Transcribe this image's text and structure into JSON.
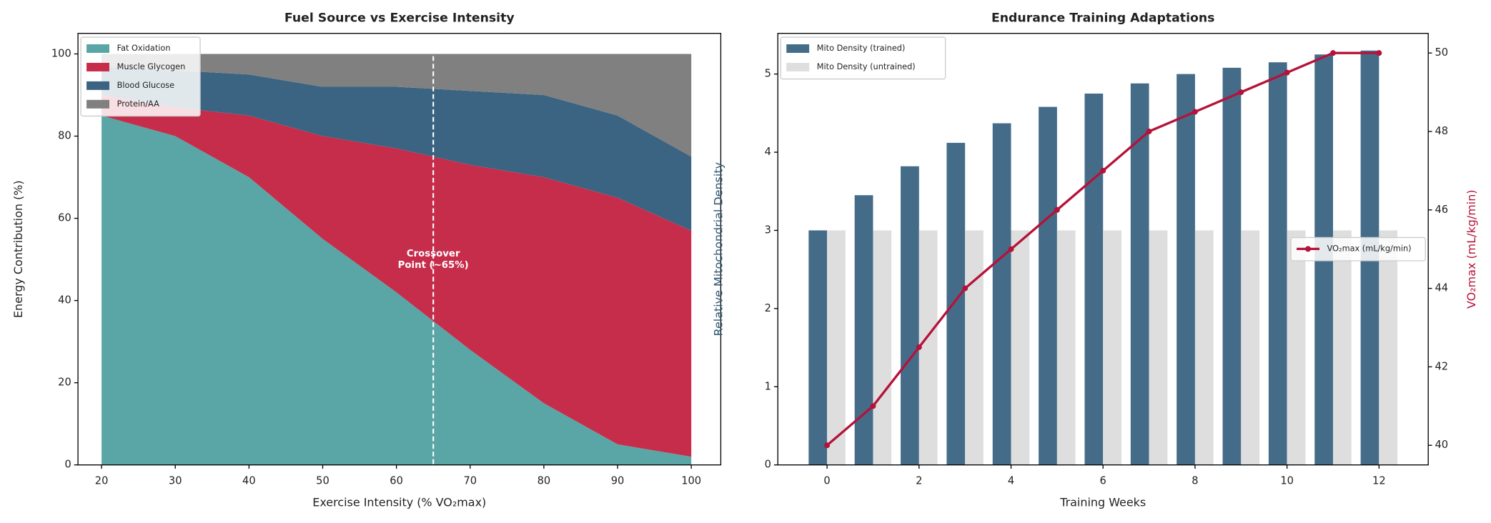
{
  "chart_data": [
    {
      "type": "area",
      "title": "Fuel Source vs Exercise Intensity",
      "xlabel": "Exercise Intensity (% VO₂max)",
      "ylabel": "Energy Contribution (%)",
      "x": [
        20,
        30,
        40,
        50,
        60,
        70,
        80,
        90,
        100
      ],
      "series": [
        {
          "name": "Fat Oxidation",
          "color": "#5aa6a6",
          "values": [
            85,
            80,
            70,
            55,
            42,
            28,
            15,
            5,
            2
          ]
        },
        {
          "name": "Muscle Glycogen",
          "color": "#c62d4a",
          "values": [
            5,
            7,
            15,
            25,
            35,
            45,
            55,
            60,
            55
          ]
        },
        {
          "name": "Blood Glucose",
          "color": "#3b6482",
          "values": [
            7,
            9,
            10,
            12,
            15,
            18,
            20,
            20,
            18
          ]
        },
        {
          "name": "Protein/AA",
          "color": "#808080",
          "values": [
            3,
            4,
            5,
            8,
            8,
            9,
            10,
            15,
            25
          ]
        }
      ],
      "xlim": [
        16.8,
        104
      ],
      "xticks": [
        20,
        30,
        40,
        50,
        60,
        70,
        80,
        90,
        100
      ],
      "ylim": [
        0,
        105
      ],
      "yticks": [
        0,
        20,
        40,
        60,
        80,
        100
      ],
      "vline": 65,
      "annotation": {
        "text": "Crossover\nPoint (~65%)",
        "x": 65,
        "y": 50
      },
      "legend": "upper left"
    },
    {
      "type": "combo",
      "title": "Endurance Training Adaptations",
      "xlabel": "Training Weeks",
      "ylabel": "Relative Mitochondrial Density",
      "y2label": "VO₂max (mL/kg/min)",
      "ylabel_color": "#2f5873",
      "y2label_color": "#b5123a",
      "x": [
        0,
        1,
        2,
        3,
        4,
        5,
        6,
        7,
        8,
        9,
        10,
        11,
        12
      ],
      "series": [
        {
          "name": "Mito Density (trained)",
          "kind": "bar",
          "color": "#446c89",
          "values": [
            3.0,
            3.45,
            3.82,
            4.12,
            4.37,
            4.58,
            4.75,
            4.88,
            5.0,
            5.08,
            5.15,
            5.25,
            5.3
          ]
        },
        {
          "name": "Mito Density (untrained)",
          "kind": "bar",
          "color": "#dedede",
          "values": [
            3,
            3,
            3,
            3,
            3,
            3,
            3,
            3,
            3,
            3,
            3,
            3,
            3
          ]
        },
        {
          "name": "VO₂max (mL/kg/min)",
          "kind": "line",
          "axis": "y2",
          "color": "#b5123a",
          "values": [
            40,
            41,
            42.5,
            44,
            45,
            46,
            47,
            48,
            48.5,
            49,
            49.5,
            50,
            50
          ]
        }
      ],
      "xlim": [
        -1.07,
        13.07
      ],
      "xticks": [
        0,
        2,
        4,
        6,
        8,
        10,
        12
      ],
      "ylim": [
        0,
        5.52
      ],
      "yticks": [
        0,
        1,
        2,
        3,
        4,
        5
      ],
      "y2lim": [
        39.5,
        50.5
      ],
      "y2ticks": [
        40,
        42,
        44,
        46,
        48,
        50
      ],
      "legend": "upper left",
      "legend2": "center right"
    }
  ]
}
